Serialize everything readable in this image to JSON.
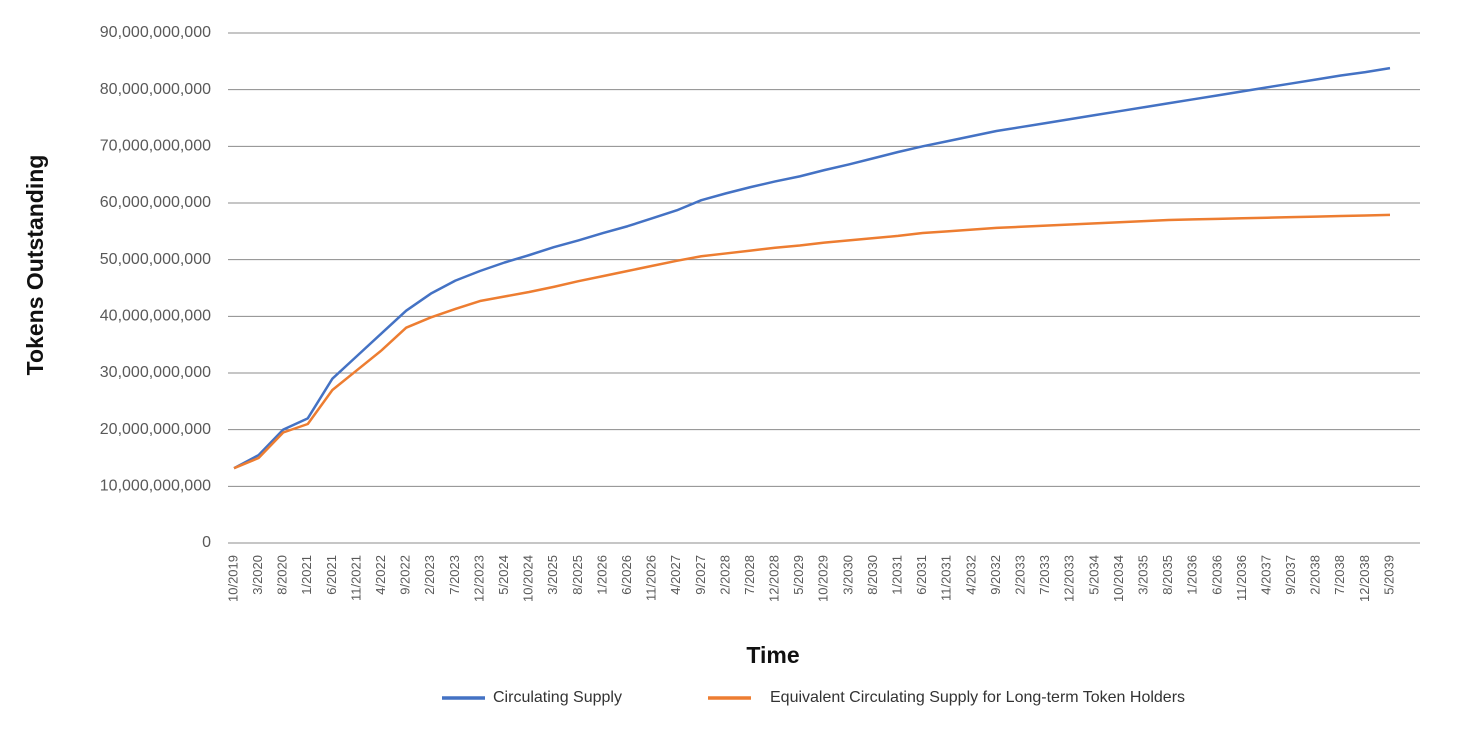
{
  "chart_data": {
    "type": "line",
    "x_label": "Time",
    "y_label": "Tokens Outstanding",
    "categories": [
      "10/2019",
      "3/2020",
      "8/2020",
      "1/2021",
      "6/2021",
      "11/2021",
      "4/2022",
      "9/2022",
      "2/2023",
      "7/2023",
      "12/2023",
      "5/2024",
      "10/2024",
      "3/2025",
      "8/2025",
      "1/2026",
      "6/2026",
      "11/2026",
      "4/2027",
      "9/2027",
      "2/2028",
      "7/2028",
      "12/2028",
      "5/2029",
      "10/2029",
      "3/2030",
      "8/2030",
      "1/2031",
      "6/2031",
      "11/2031",
      "4/2032",
      "9/2032",
      "2/2033",
      "7/2033",
      "12/2033",
      "5/2034",
      "10/2034",
      "3/2035",
      "8/2035",
      "1/2036",
      "6/2036",
      "11/2036",
      "4/2037",
      "9/2037",
      "2/2038",
      "7/2038",
      "12/2038",
      "5/2039"
    ],
    "series": [
      {
        "name": "Circulating Supply",
        "color": "#4472c4",
        "values": [
          13200000000,
          15500000000,
          20000000000,
          22000000000,
          29000000000,
          33000000000,
          37000000000,
          41000000000,
          44000000000,
          46300000000,
          48000000000,
          49500000000,
          50800000000,
          52200000000,
          53400000000,
          54700000000,
          55900000000,
          57300000000,
          58700000000,
          60500000000,
          61700000000,
          62800000000,
          63800000000,
          64700000000,
          65800000000,
          66800000000,
          67900000000,
          69000000000,
          70000000000,
          70900000000,
          71800000000,
          72700000000,
          73400000000,
          74100000000,
          74800000000,
          75500000000,
          76200000000,
          76900000000,
          77600000000,
          78300000000,
          79000000000,
          79700000000,
          80400000000,
          81100000000,
          81800000000,
          82500000000,
          83100000000,
          83800000000
        ]
      },
      {
        "name": "Equivalent Circulating Supply for Long-term Token Holders",
        "color": "#ed7d31",
        "values": [
          13200000000,
          15000000000,
          19500000000,
          21000000000,
          27000000000,
          30500000000,
          34000000000,
          38000000000,
          39800000000,
          41300000000,
          42700000000,
          43500000000,
          44300000000,
          45200000000,
          46200000000,
          47100000000,
          48000000000,
          48900000000,
          49800000000,
          50600000000,
          51100000000,
          51600000000,
          52100000000,
          52500000000,
          53000000000,
          53400000000,
          53800000000,
          54200000000,
          54700000000,
          55000000000,
          55300000000,
          55600000000,
          55800000000,
          56000000000,
          56200000000,
          56400000000,
          56600000000,
          56800000000,
          57000000000,
          57100000000,
          57200000000,
          57300000000,
          57400000000,
          57500000000,
          57600000000,
          57700000000,
          57800000000,
          57900000000
        ]
      }
    ],
    "ylim": [
      0,
      90000000000
    ],
    "yticks": [
      0,
      {
        "value": 10000000000,
        "label": "10,000,000,000"
      },
      {
        "value": 20000000000,
        "label": "20,000,000,000"
      },
      {
        "value": 30000000000,
        "label": "30,000,000,000"
      },
      {
        "value": 40000000000,
        "label": "40,000,000,000"
      },
      {
        "value": 50000000000,
        "label": "50,000,000,000"
      },
      {
        "value": 60000000000,
        "label": "60,000,000,000"
      },
      {
        "value": 70000000000,
        "label": "70,000,000,000"
      },
      {
        "value": 80000000000,
        "label": "80,000,000,000"
      },
      {
        "value": 90000000000,
        "label": "90,000,000,000"
      }
    ],
    "grid": true,
    "legend": "bottom"
  }
}
